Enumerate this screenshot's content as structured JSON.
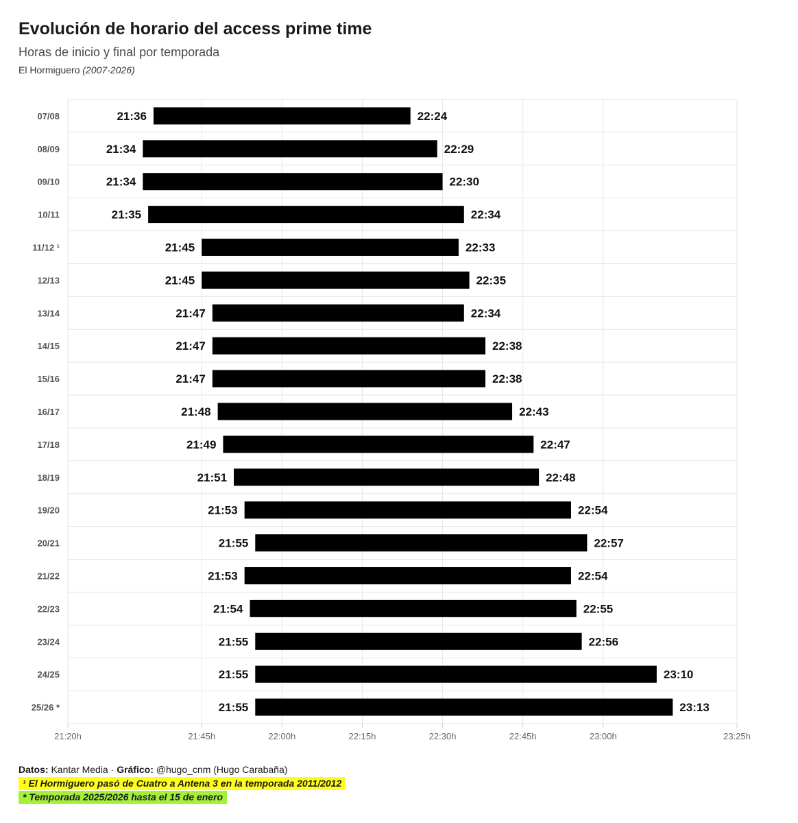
{
  "header": {
    "title": "Evolución de horario del access prime time",
    "subtitle": "Horas de inicio y final por temporada",
    "show": "El Hormiguero",
    "years": "(2007-2026)"
  },
  "footer": {
    "data_label": "Datos:",
    "data_value": "Kantar Media",
    "separator": "·",
    "chart_label": "Gráfico:",
    "chart_value": "@hugo_cnm (Hugo Carabaña)",
    "note1": "¹ El Hormiguero pasó de Cuatro a Antena 3 en la temporada 2011/2012",
    "note2": "* Temporada 2025/2026 hasta el 15 de enero"
  },
  "colors": {
    "bar": "#000000",
    "grid": "#e6e6e6",
    "note1_bg": "#ffff1a",
    "note2_bg": "#a4ef3a"
  },
  "chart_data": {
    "type": "bar",
    "orientation": "horizontal-range",
    "title": "Evolución de horario del access prime time",
    "subtitle": "Horas de inicio y final por temporada",
    "xlim": [
      "21:20",
      "23:25"
    ],
    "x_ticks": [
      "21:20h",
      "21:45h",
      "22:00h",
      "22:15h",
      "22:30h",
      "22:45h",
      "23:00h",
      "23:25h"
    ],
    "grid": true,
    "categories": [
      "07/08",
      "08/09",
      "09/10",
      "10/11",
      "11/12 ¹",
      "12/13",
      "13/14",
      "14/15",
      "15/16",
      "16/17",
      "17/18",
      "18/19",
      "19/20",
      "20/21",
      "21/22",
      "22/23",
      "23/24",
      "24/25",
      "25/26 *"
    ],
    "start": [
      "21:36",
      "21:34",
      "21:34",
      "21:35",
      "21:45",
      "21:45",
      "21:47",
      "21:47",
      "21:47",
      "21:48",
      "21:49",
      "21:51",
      "21:53",
      "21:55",
      "21:53",
      "21:54",
      "21:55",
      "21:55",
      "21:55"
    ],
    "end": [
      "22:24",
      "22:29",
      "22:30",
      "22:34",
      "22:33",
      "22:35",
      "22:34",
      "22:38",
      "22:38",
      "22:43",
      "22:47",
      "22:48",
      "22:54",
      "22:57",
      "22:54",
      "22:55",
      "22:56",
      "23:10",
      "23:13"
    ]
  }
}
